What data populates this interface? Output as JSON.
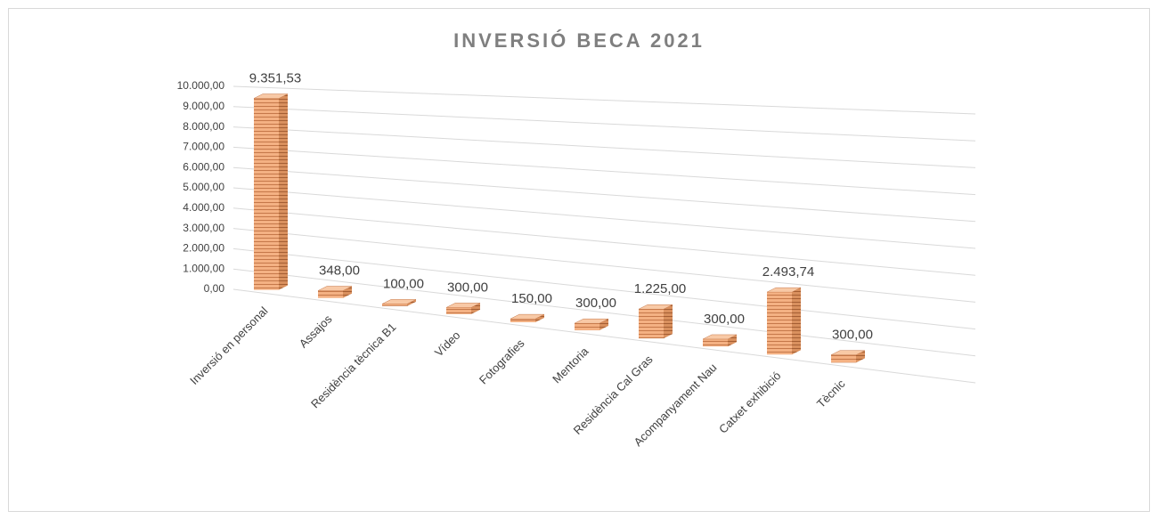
{
  "chart_data": {
    "type": "bar3d",
    "title": "INVERSIÓ BECA 2021",
    "categories": [
      "Inversió en personal",
      "Assajos",
      "Residència tècnica B1",
      "Vídeo",
      "Fotografies",
      "Mentoria",
      "Residència Cal Gras",
      "Acompanyament Nau",
      "Catxet exhibició",
      "Tècnic"
    ],
    "values": [
      9351.53,
      348,
      100,
      300,
      150,
      300,
      1225,
      300,
      2493.74,
      300
    ],
    "value_labels": [
      "9.351,53",
      "348,00",
      "100,00",
      "300,00",
      "150,00",
      "300,00",
      "1.225,00",
      "300,00",
      "2.493,74",
      "300,00"
    ],
    "color": "#f4b183",
    "ylim": [
      0,
      10000
    ],
    "yticks": [
      {
        "value": 0,
        "label": "0,00"
      },
      {
        "value": 1000,
        "label": "1.000,00"
      },
      {
        "value": 2000,
        "label": "2.000,00"
      },
      {
        "value": 3000,
        "label": "3.000,00"
      },
      {
        "value": 4000,
        "label": "4.000,00"
      },
      {
        "value": 5000,
        "label": "5.000,00"
      },
      {
        "value": 6000,
        "label": "6.000,00"
      },
      {
        "value": 7000,
        "label": "7.000,00"
      },
      {
        "value": 8000,
        "label": "8.000,00"
      },
      {
        "value": 9000,
        "label": "9.000,00"
      },
      {
        "value": 10000,
        "label": "10.000,00"
      }
    ],
    "grid": true
  }
}
